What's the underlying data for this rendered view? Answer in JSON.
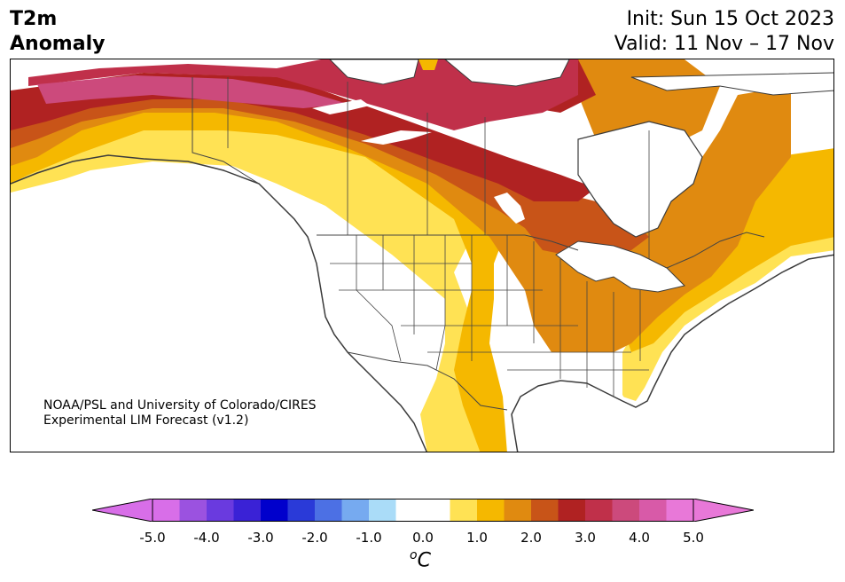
{
  "header": {
    "title_line1": "T2m",
    "title_line2": "Anomaly",
    "init": "Init: Sun 15 Oct 2023",
    "valid": "Valid: 11 Nov – 17 Nov"
  },
  "credit": {
    "line1": "NOAA/PSL and University of Colorado/CIRES",
    "line2": "Experimental LIM Forecast (v1.2)"
  },
  "colorbar": {
    "unit_sup": "o",
    "unit_main": "C",
    "ticks": [
      "-5.0",
      "-4.0",
      "-3.0",
      "-2.0",
      "-1.0",
      "0.0",
      "1.0",
      "2.0",
      "3.0",
      "4.0",
      "5.0"
    ],
    "colors": {
      "below": "#d86ee8",
      "bins": [
        "#d86ee8",
        "#9b52e0",
        "#6a3adf",
        "#3a22d6",
        "#0000cc",
        "#2a3ad8",
        "#4c70e4",
        "#76aaf0",
        "#aadcf8",
        "#ffffff",
        "#ffffff",
        "#ffe254",
        "#f5b800",
        "#e08a10",
        "#c85418",
        "#b02222",
        "#c0304a",
        "#cc4a7c",
        "#d85aa8",
        "#e878d8"
      ],
      "above": "#e878d8"
    }
  },
  "map_colors": {
    "ocean": "#ffffff",
    "coast": "#3b3b3b",
    "border": "#444444"
  }
}
